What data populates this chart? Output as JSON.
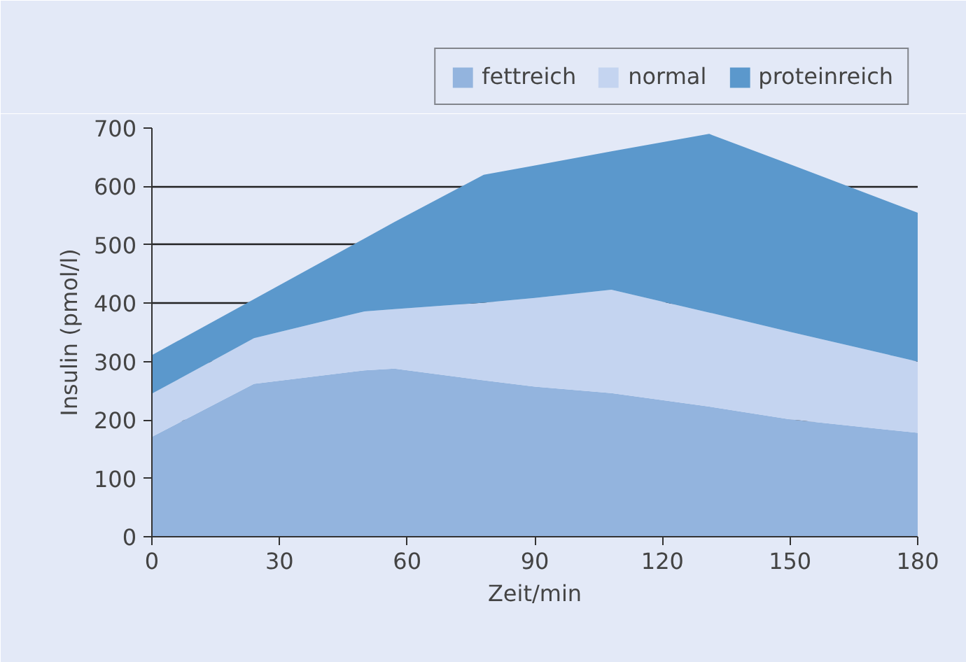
{
  "chart_data": {
    "type": "area",
    "stacked": true,
    "xlabel": "Zeit/min",
    "ylabel": "Insulin (pmol/l)",
    "x": [
      0,
      24,
      50,
      57,
      78,
      90,
      108,
      131,
      150,
      180
    ],
    "series": [
      {
        "name": "fettreich",
        "color": "#93b4de",
        "values": [
          171,
          262,
          285,
          288,
          268,
          257,
          246,
          223,
          201,
          178
        ]
      },
      {
        "name": "normal",
        "color": "#c4d4f0",
        "values": [
          74,
          78,
          101,
          102,
          133,
          152,
          177,
          161,
          150,
          122
        ]
      },
      {
        "name": "proteinreich",
        "color": "#5b98cc",
        "values": [
          66,
          67,
          125,
          149,
          219,
          227,
          237,
          306,
          287,
          255
        ]
      }
    ],
    "xlim": [
      0,
      180
    ],
    "ylim": [
      0,
      700
    ],
    "xticks": [
      0,
      30,
      60,
      90,
      120,
      150,
      180
    ],
    "yticks": [
      0,
      100,
      200,
      300,
      400,
      500,
      600,
      700
    ],
    "grid": "y",
    "legend": "top"
  }
}
